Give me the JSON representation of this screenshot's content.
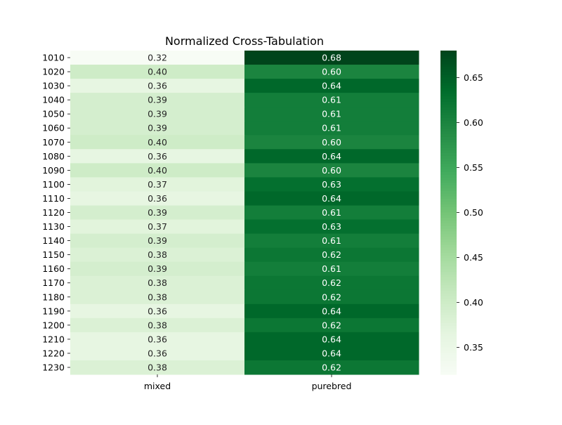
{
  "chart_data": {
    "type": "heatmap",
    "title": "Normalized Cross-Tabulation",
    "xlabel": "",
    "ylabel": "",
    "colormap": "Greens",
    "columns": [
      "mixed",
      "purebred"
    ],
    "rows": [
      "1010",
      "1020",
      "1030",
      "1040",
      "1050",
      "1060",
      "1070",
      "1080",
      "1090",
      "1100",
      "1110",
      "1120",
      "1130",
      "1140",
      "1150",
      "1160",
      "1170",
      "1180",
      "1190",
      "1200",
      "1210",
      "1220",
      "1230"
    ],
    "values": [
      [
        0.32,
        0.68
      ],
      [
        0.4,
        0.6
      ],
      [
        0.36,
        0.64
      ],
      [
        0.39,
        0.61
      ],
      [
        0.39,
        0.61
      ],
      [
        0.39,
        0.61
      ],
      [
        0.4,
        0.6
      ],
      [
        0.36,
        0.64
      ],
      [
        0.4,
        0.6
      ],
      [
        0.37,
        0.63
      ],
      [
        0.36,
        0.64
      ],
      [
        0.39,
        0.61
      ],
      [
        0.37,
        0.63
      ],
      [
        0.39,
        0.61
      ],
      [
        0.38,
        0.62
      ],
      [
        0.39,
        0.61
      ],
      [
        0.38,
        0.62
      ],
      [
        0.38,
        0.62
      ],
      [
        0.36,
        0.64
      ],
      [
        0.38,
        0.62
      ],
      [
        0.36,
        0.64
      ],
      [
        0.36,
        0.64
      ],
      [
        0.38,
        0.62
      ]
    ],
    "value_format": "0.00",
    "colorbar": {
      "range": [
        0.32,
        0.68
      ],
      "ticks": [
        "0.35",
        "0.40",
        "0.45",
        "0.50",
        "0.55",
        "0.60",
        "0.65"
      ]
    },
    "grid": false
  }
}
